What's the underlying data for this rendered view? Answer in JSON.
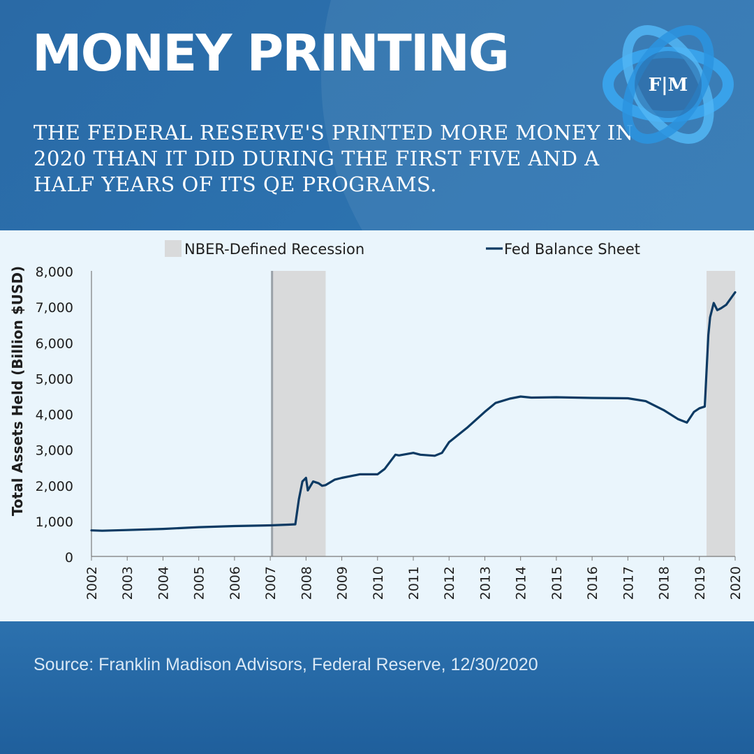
{
  "header": {
    "title": "MONEY PRINTING",
    "subtitle": "THE FEDERAL RESERVE'S PRINTED MORE MONEY IN 2020 THAN IT DID DURING THE FIRST FIVE AND A HALF YEARS OF ITS QE PROGRAMS."
  },
  "logo": {
    "text": "F|M",
    "icon": "ribbon-logo-icon"
  },
  "colors": {
    "background": "#2c73b0",
    "chart_background": "#eaf5fc",
    "line": "#0d3a63",
    "recession": "#d9dadb",
    "logo_blue": "#3aa6ef"
  },
  "chart_data": {
    "type": "line",
    "title": "",
    "xlabel": "",
    "ylabel": "Total Assets Held (Billion $USD)",
    "ylim": [
      0,
      8000
    ],
    "xlim": [
      2002,
      2020
    ],
    "yticks": [
      0,
      1000,
      2000,
      3000,
      4000,
      5000,
      6000,
      7000,
      8000
    ],
    "ytick_labels": [
      "0",
      "1,000",
      "2,000",
      "3,000",
      "4,000",
      "5,000",
      "6,000",
      "7,000",
      "8,000"
    ],
    "xticks": [
      2002,
      2003,
      2004,
      2005,
      2006,
      2007,
      2008,
      2009,
      2010,
      2011,
      2012,
      2013,
      2014,
      2015,
      2016,
      2017,
      2018,
      2019,
      2020
    ],
    "xtick_labels": [
      "2002",
      "2003",
      "2004",
      "2005",
      "2006",
      "2007",
      "2008",
      "2009",
      "2010",
      "2011",
      "2012",
      "2013",
      "2014",
      "2015",
      "2016",
      "2017",
      "2018",
      "2019",
      "2020"
    ],
    "grid": false,
    "legend": {
      "placement": "top",
      "items": [
        {
          "label": "NBER-Defined Recession",
          "type": "shaded"
        },
        {
          "label": "Fed Balance Sheet",
          "type": "line"
        }
      ]
    },
    "recessions": [
      {
        "start": 2007.05,
        "end": 2008.55
      },
      {
        "start": 2019.2,
        "end": 2020
      }
    ],
    "series": [
      {
        "name": "Fed Balance Sheet",
        "x": [
          2002.0,
          2002.3,
          2003.0,
          2004.0,
          2005.0,
          2006.0,
          2007.0,
          2007.5,
          2007.7,
          2007.8,
          2007.9,
          2008.0,
          2008.05,
          2008.2,
          2008.35,
          2008.45,
          2008.55,
          2008.8,
          2009.0,
          2009.5,
          2010.0,
          2010.2,
          2010.5,
          2010.6,
          2011.0,
          2011.2,
          2011.6,
          2011.8,
          2012.0,
          2012.5,
          2013.0,
          2013.3,
          2013.7,
          2014.0,
          2014.3,
          2015.0,
          2016.0,
          2017.0,
          2017.5,
          2018.0,
          2018.4,
          2018.65,
          2018.85,
          2019.0,
          2019.15,
          2019.25,
          2019.3,
          2019.4,
          2019.5,
          2019.6,
          2019.75,
          2020.0
        ],
        "values": [
          730,
          720,
          740,
          770,
          820,
          850,
          870,
          890,
          900,
          1600,
          2100,
          2200,
          1850,
          2100,
          2050,
          1980,
          2000,
          2150,
          2200,
          2300,
          2300,
          2450,
          2850,
          2830,
          2900,
          2850,
          2820,
          2900,
          3200,
          3600,
          4050,
          4300,
          4420,
          4480,
          4450,
          4460,
          4440,
          4430,
          4350,
          4100,
          3850,
          3750,
          4050,
          4150,
          4200,
          6200,
          6700,
          7100,
          6900,
          6950,
          7050,
          7400
        ]
      }
    ]
  },
  "footer": {
    "source": "Source: Franklin Madison Advisors, Federal Reserve, 12/30/2020"
  }
}
